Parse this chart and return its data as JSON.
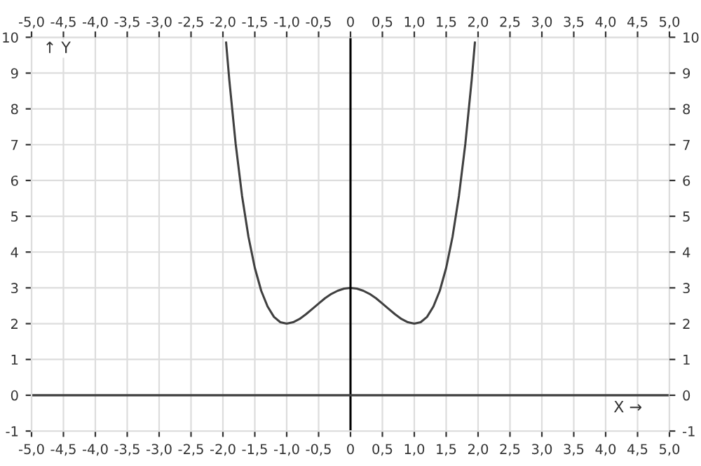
{
  "chart_data": {
    "type": "line",
    "xlabel": "X →",
    "ylabel": "↑ Y",
    "x": [
      -1.95,
      -1.9,
      -1.8,
      -1.7,
      -1.6,
      -1.5,
      -1.4,
      -1.3,
      -1.2,
      -1.1,
      -1.0,
      -0.9,
      -0.8,
      -0.7,
      -0.6,
      -0.5,
      -0.4,
      -0.3,
      -0.2,
      -0.1,
      0,
      0.1,
      0.2,
      0.3,
      0.4,
      0.5,
      0.6,
      0.7,
      0.8,
      0.9,
      1.0,
      1.1,
      1.2,
      1.3,
      1.4,
      1.5,
      1.6,
      1.7,
      1.8,
      1.9,
      1.95
    ],
    "series": [
      {
        "color": "#404040",
        "values": [
          9.85,
          8.81,
          7.02,
          5.57,
          4.43,
          3.56,
          2.92,
          2.48,
          2.19,
          2.04,
          2.0,
          2.04,
          2.13,
          2.26,
          2.41,
          2.56,
          2.71,
          2.83,
          2.92,
          2.98,
          3.0,
          2.98,
          2.92,
          2.83,
          2.71,
          2.56,
          2.41,
          2.26,
          2.13,
          2.04,
          2.0,
          2.04,
          2.19,
          2.48,
          2.92,
          3.56,
          4.43,
          5.57,
          7.02,
          8.81,
          9.85
        ]
      }
    ],
    "xlim": [
      -5,
      5
    ],
    "ylim": [
      -1,
      10
    ],
    "xticks": [
      {
        "value": -5,
        "label": "-5,0"
      },
      {
        "value": -4.5,
        "label": "-4,5"
      },
      {
        "value": -4,
        "label": "-4,0"
      },
      {
        "value": -3.5,
        "label": "-3,5"
      },
      {
        "value": -3,
        "label": "-3,0"
      },
      {
        "value": -2.5,
        "label": "-2,5"
      },
      {
        "value": -2,
        "label": "-2,0"
      },
      {
        "value": -1.5,
        "label": "-1,5"
      },
      {
        "value": -1,
        "label": "-1,0"
      },
      {
        "value": -0.5,
        "label": "-0,5"
      },
      0,
      {
        "value": 0.5,
        "label": "0,5"
      },
      {
        "value": 1,
        "label": "1,0"
      },
      {
        "value": 1.5,
        "label": "1,5"
      },
      {
        "value": 2,
        "label": "2,0"
      },
      {
        "value": 2.5,
        "label": "2,5"
      },
      {
        "value": 3,
        "label": "3,0"
      },
      {
        "value": 3.5,
        "label": "3,5"
      },
      {
        "value": 4,
        "label": "4,0"
      },
      {
        "value": 4.5,
        "label": "4,5"
      },
      {
        "value": 5,
        "label": "5,0"
      }
    ],
    "x2lim": [
      -5,
      5
    ],
    "x2ticks": [
      {
        "value": -5,
        "label": "-5,0"
      },
      {
        "value": -4.5,
        "label": "-4,5"
      },
      {
        "value": -4,
        "label": "-4,0"
      },
      {
        "value": -3.5,
        "label": "-3,5"
      },
      {
        "value": -3,
        "label": "-3,0"
      },
      {
        "value": -2.5,
        "label": "-2,5"
      },
      {
        "value": -2,
        "label": "-2,0"
      },
      {
        "value": -1.5,
        "label": "-1,5"
      },
      {
        "value": -1,
        "label": "-1,0"
      },
      {
        "value": -0.5,
        "label": "-0,5"
      },
      0,
      {
        "value": 0.5,
        "label": "0,5"
      },
      {
        "value": 1,
        "label": "1,0"
      },
      {
        "value": 1.5,
        "label": "1,5"
      },
      {
        "value": 2,
        "label": "2,0"
      },
      {
        "value": 2.5,
        "label": "2,5"
      },
      {
        "value": 3,
        "label": "3,0"
      },
      {
        "value": 3.5,
        "label": "3,5"
      },
      {
        "value": 4,
        "label": "4,0"
      },
      {
        "value": 4.5,
        "label": "4,5"
      },
      {
        "value": 5,
        "label": "5,0"
      }
    ],
    "yticks": [
      -1,
      0,
      1,
      2,
      3,
      4,
      5,
      6,
      7,
      8,
      9,
      10
    ],
    "y2lim": [
      -1,
      10
    ],
    "y2ticks": [
      -1,
      0,
      1,
      2,
      3,
      4,
      5,
      6,
      7,
      8,
      9,
      10
    ],
    "ref_lines": [
      {
        "axis": "x",
        "value": 0,
        "color": "#000000"
      },
      {
        "axis": "y",
        "value": 0,
        "color": "#404040"
      }
    ],
    "grid": true,
    "marker": "none",
    "line_style": "solid"
  }
}
